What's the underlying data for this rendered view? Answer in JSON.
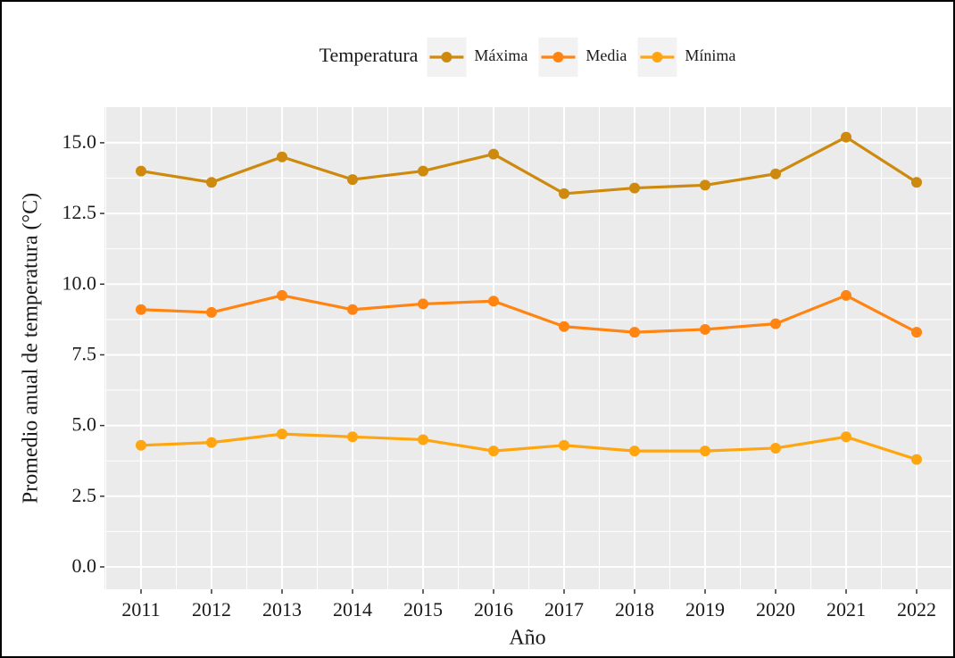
{
  "chart_data": {
    "type": "line",
    "x_label": "Año",
    "y_label": "Promedio anual de temperatura (°C)",
    "legend_title": "Temperatura",
    "legend_position": "top",
    "grid": true,
    "categories": [
      "2011",
      "2012",
      "2013",
      "2014",
      "2015",
      "2016",
      "2017",
      "2018",
      "2019",
      "2020",
      "2021",
      "2022"
    ],
    "series": [
      {
        "name": "Máxima",
        "color": "#CD8A0E",
        "values": [
          14.0,
          13.6,
          14.5,
          13.7,
          14.0,
          14.6,
          13.2,
          13.4,
          13.5,
          13.9,
          15.2,
          13.6
        ]
      },
      {
        "name": "Media",
        "color": "#FF8412",
        "values": [
          9.1,
          9.0,
          9.6,
          9.1,
          9.3,
          9.4,
          8.5,
          8.3,
          8.4,
          8.6,
          9.6,
          8.3
        ]
      },
      {
        "name": "Mínima",
        "color": "#FFA510",
        "values": [
          4.3,
          4.4,
          4.7,
          4.6,
          4.5,
          4.1,
          4.3,
          4.1,
          4.1,
          4.2,
          4.6,
          3.8
        ]
      }
    ],
    "ylim": [
      -0.79,
      16.26
    ],
    "yticks": [
      {
        "value": 0,
        "label": "0.0"
      },
      2.5,
      {
        "value": 5,
        "label": "5.0"
      },
      7.5,
      {
        "value": 10,
        "label": "10.0"
      },
      12.5,
      {
        "value": 15,
        "label": "15.0"
      }
    ]
  }
}
